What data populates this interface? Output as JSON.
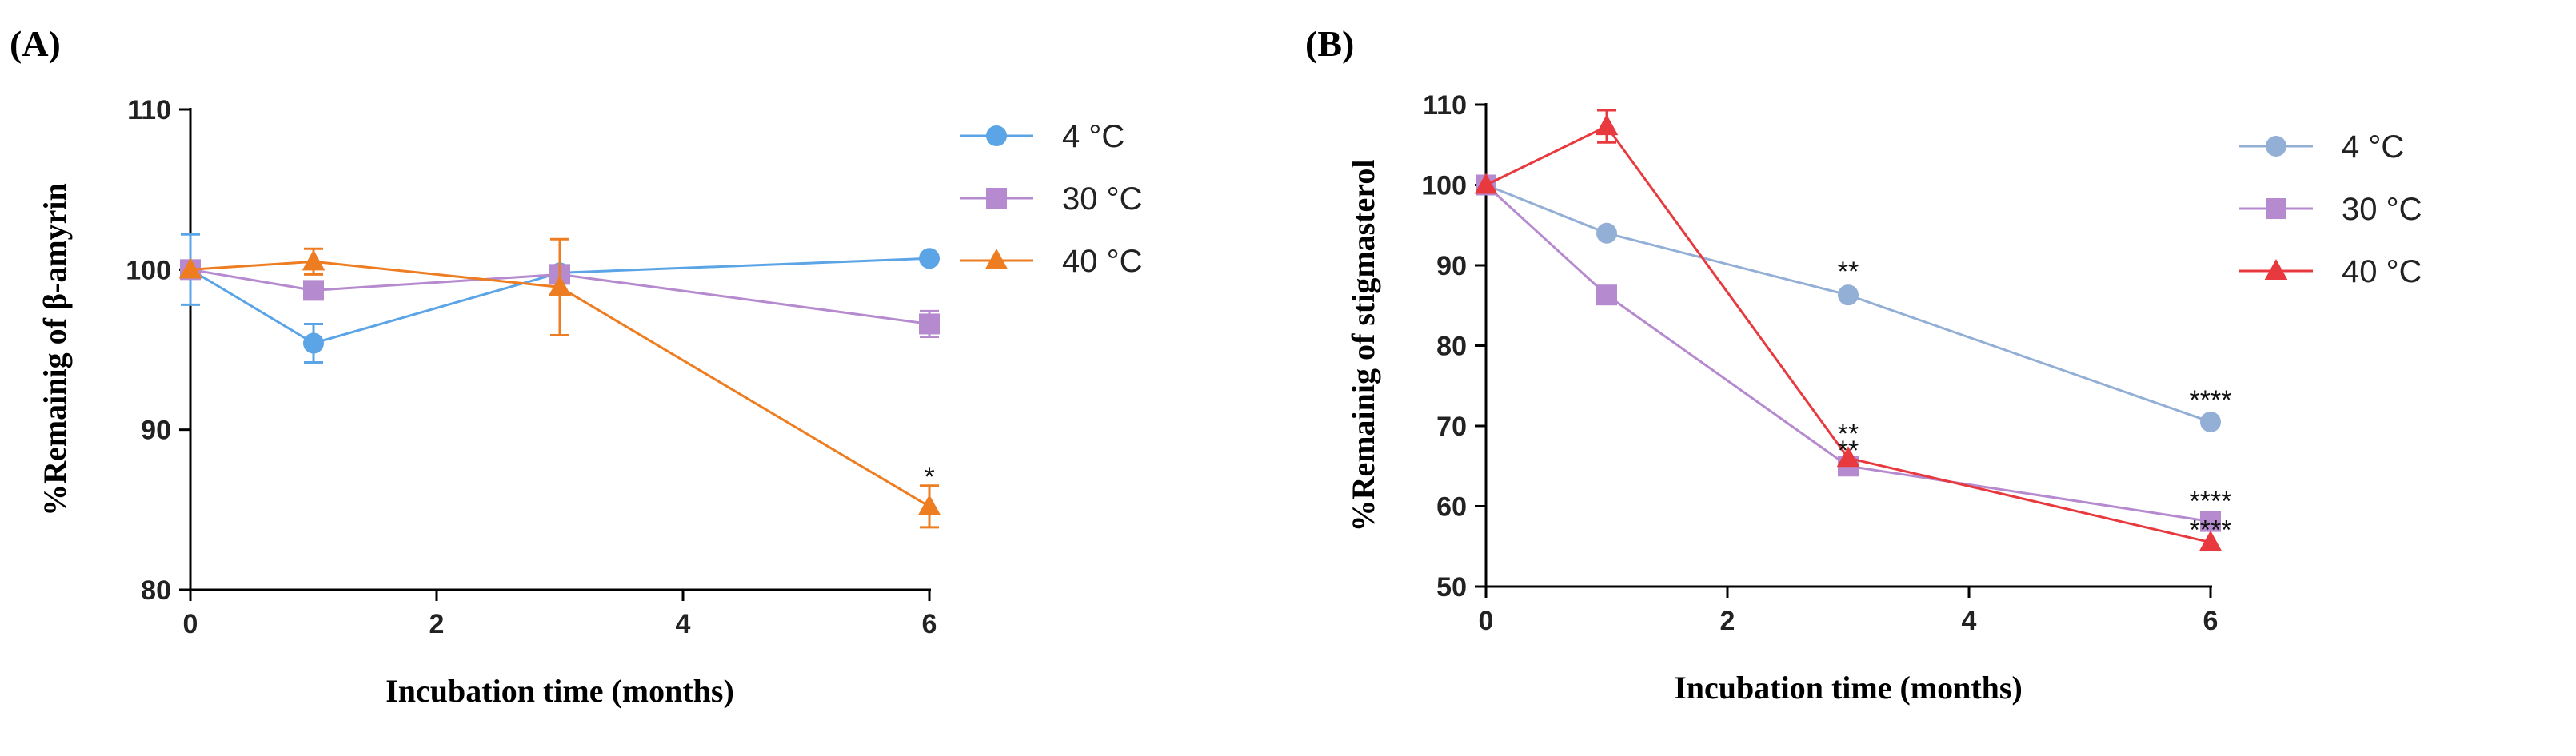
{
  "chart_data": [
    {
      "panel": "(A)",
      "type": "line",
      "xlabel": "Incubation time (months)",
      "ylabel": "%Remainig of β-amyrin",
      "xlim": [
        0,
        6
      ],
      "ylim": [
        80,
        110
      ],
      "xticks": [
        0,
        2,
        4,
        6
      ],
      "yticks": [
        80,
        90,
        100,
        110
      ],
      "grid": false,
      "legend_position": "right",
      "series": [
        {
          "name": "4 °C",
          "color": "#5BA4E6",
          "marker": "circle",
          "x": [
            0,
            1,
            3,
            6
          ],
          "y": [
            100.0,
            95.4,
            99.8,
            100.7
          ],
          "err": [
            2.2,
            1.2,
            0,
            0
          ]
        },
        {
          "name": "30 °C",
          "color": "#B58ACF",
          "marker": "square",
          "x": [
            0,
            1,
            3,
            6
          ],
          "y": [
            100.0,
            98.7,
            99.7,
            96.6
          ],
          "err": [
            0,
            0,
            0,
            0.8
          ]
        },
        {
          "name": "40 °C",
          "color": "#EE7D22",
          "marker": "triangle",
          "x": [
            0,
            1,
            3,
            6
          ],
          "y": [
            100.0,
            100.5,
            98.9,
            85.2
          ],
          "err": [
            0,
            0.8,
            3.0,
            1.3
          ]
        }
      ],
      "annotations": [
        {
          "text": "*",
          "x": 6,
          "y": 87.2
        }
      ]
    },
    {
      "panel": "(B)",
      "type": "line",
      "xlabel": "Incubation time (months)",
      "ylabel": "%Remainig of stigmasterol",
      "xlim": [
        0,
        6
      ],
      "ylim": [
        50,
        110
      ],
      "xticks": [
        0,
        2,
        4,
        6
      ],
      "yticks": [
        50,
        60,
        70,
        80,
        90,
        100,
        110
      ],
      "grid": false,
      "legend_position": "right",
      "series": [
        {
          "name": "4 °C",
          "color": "#93AFD6",
          "marker": "circle",
          "x": [
            0,
            1,
            3,
            6
          ],
          "y": [
            100.0,
            94.0,
            86.3,
            70.5
          ],
          "err": [
            0,
            0,
            0,
            0
          ]
        },
        {
          "name": "30 °C",
          "color": "#B58ACF",
          "marker": "square",
          "x": [
            0,
            1,
            3,
            6
          ],
          "y": [
            100.0,
            86.3,
            65.0,
            58.1
          ],
          "err": [
            0,
            0,
            0,
            0
          ]
        },
        {
          "name": "40 °C",
          "color": "#E8393F",
          "marker": "triangle",
          "x": [
            0,
            1,
            3,
            6
          ],
          "y": [
            100.0,
            107.3,
            66.0,
            55.5
          ],
          "err": [
            0,
            2.0,
            0,
            0
          ]
        }
      ],
      "annotations": [
        {
          "text": "**",
          "x": 3,
          "y": 89.5
        },
        {
          "text": "**",
          "x": 3,
          "y": 69.3
        },
        {
          "text": "**",
          "x": 3,
          "y": 67.2
        },
        {
          "text": "****",
          "x": 6,
          "y": 73.5
        },
        {
          "text": "****",
          "x": 6,
          "y": 60.9
        },
        {
          "text": "****",
          "x": 6,
          "y": 57.3
        }
      ]
    }
  ]
}
